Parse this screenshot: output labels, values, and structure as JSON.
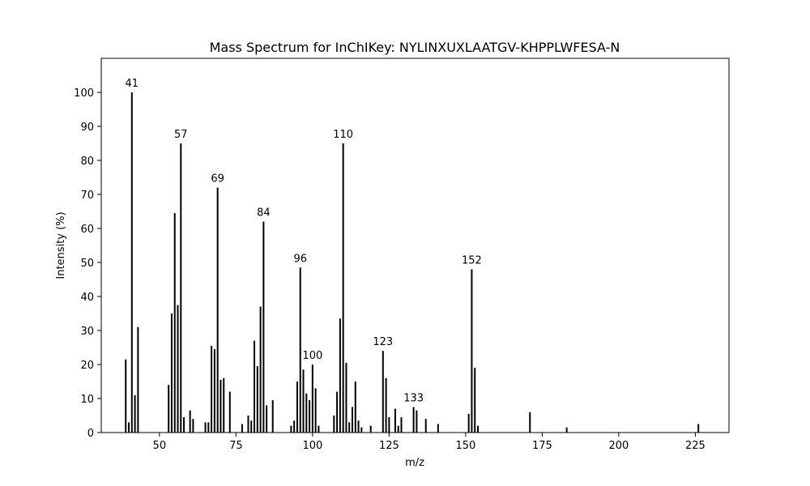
{
  "chart_data": {
    "type": "bar",
    "title": "Mass Spectrum for InChIKey: NYLINXUXLAATGV-KHPPLWFESA-N",
    "xlabel": "m/z",
    "ylabel": "Intensity (%)",
    "xlim": [
      31,
      236
    ],
    "ylim": [
      0,
      110
    ],
    "x_ticks": [
      50,
      75,
      100,
      125,
      150,
      175,
      200,
      225
    ],
    "y_ticks": [
      0,
      10,
      20,
      30,
      40,
      50,
      60,
      70,
      80,
      90,
      100
    ],
    "grid": false,
    "legend": "none",
    "bar_color": "#000000",
    "peaks": [
      {
        "mz": 39,
        "intensity": 21.5
      },
      {
        "mz": 40,
        "intensity": 3
      },
      {
        "mz": 41,
        "intensity": 100,
        "label": "41"
      },
      {
        "mz": 42,
        "intensity": 11
      },
      {
        "mz": 43,
        "intensity": 31
      },
      {
        "mz": 53,
        "intensity": 14
      },
      {
        "mz": 54,
        "intensity": 35
      },
      {
        "mz": 55,
        "intensity": 64.5
      },
      {
        "mz": 56,
        "intensity": 37.5
      },
      {
        "mz": 57,
        "intensity": 85,
        "label": "57"
      },
      {
        "mz": 58,
        "intensity": 4.5
      },
      {
        "mz": 60,
        "intensity": 6.5
      },
      {
        "mz": 61,
        "intensity": 4
      },
      {
        "mz": 65,
        "intensity": 3
      },
      {
        "mz": 66,
        "intensity": 3
      },
      {
        "mz": 67,
        "intensity": 25.5
      },
      {
        "mz": 68,
        "intensity": 24.5
      },
      {
        "mz": 69,
        "intensity": 72,
        "label": "69"
      },
      {
        "mz": 70,
        "intensity": 15.5
      },
      {
        "mz": 71,
        "intensity": 16
      },
      {
        "mz": 73,
        "intensity": 12
      },
      {
        "mz": 77,
        "intensity": 2.5
      },
      {
        "mz": 79,
        "intensity": 5
      },
      {
        "mz": 80,
        "intensity": 3.5
      },
      {
        "mz": 81,
        "intensity": 27
      },
      {
        "mz": 82,
        "intensity": 19.5
      },
      {
        "mz": 83,
        "intensity": 37
      },
      {
        "mz": 84,
        "intensity": 62,
        "label": "84"
      },
      {
        "mz": 85,
        "intensity": 8
      },
      {
        "mz": 87,
        "intensity": 9.5
      },
      {
        "mz": 93,
        "intensity": 2
      },
      {
        "mz": 94,
        "intensity": 3.5
      },
      {
        "mz": 95,
        "intensity": 15
      },
      {
        "mz": 96,
        "intensity": 48.5,
        "label": "96"
      },
      {
        "mz": 97,
        "intensity": 18.5
      },
      {
        "mz": 98,
        "intensity": 11.5
      },
      {
        "mz": 99,
        "intensity": 9.5
      },
      {
        "mz": 100,
        "intensity": 20,
        "label": "100"
      },
      {
        "mz": 101,
        "intensity": 13
      },
      {
        "mz": 102,
        "intensity": 2
      },
      {
        "mz": 107,
        "intensity": 5
      },
      {
        "mz": 108,
        "intensity": 12
      },
      {
        "mz": 109,
        "intensity": 33.5
      },
      {
        "mz": 110,
        "intensity": 85,
        "label": "110"
      },
      {
        "mz": 111,
        "intensity": 20.5
      },
      {
        "mz": 112,
        "intensity": 3
      },
      {
        "mz": 113,
        "intensity": 7.5
      },
      {
        "mz": 114,
        "intensity": 15
      },
      {
        "mz": 115,
        "intensity": 3.5
      },
      {
        "mz": 116,
        "intensity": 1.5
      },
      {
        "mz": 119,
        "intensity": 2
      },
      {
        "mz": 123,
        "intensity": 24,
        "label": "123"
      },
      {
        "mz": 124,
        "intensity": 16
      },
      {
        "mz": 125,
        "intensity": 4.5
      },
      {
        "mz": 127,
        "intensity": 7
      },
      {
        "mz": 128,
        "intensity": 2
      },
      {
        "mz": 129,
        "intensity": 4.5
      },
      {
        "mz": 133,
        "intensity": 7.5,
        "label": "133"
      },
      {
        "mz": 134,
        "intensity": 6.5
      },
      {
        "mz": 137,
        "intensity": 4
      },
      {
        "mz": 141,
        "intensity": 2.5
      },
      {
        "mz": 151,
        "intensity": 5.5
      },
      {
        "mz": 152,
        "intensity": 48,
        "label": "152"
      },
      {
        "mz": 153,
        "intensity": 19
      },
      {
        "mz": 154,
        "intensity": 2
      },
      {
        "mz": 171,
        "intensity": 6
      },
      {
        "mz": 183,
        "intensity": 1.5
      },
      {
        "mz": 226,
        "intensity": 2.5
      }
    ]
  }
}
